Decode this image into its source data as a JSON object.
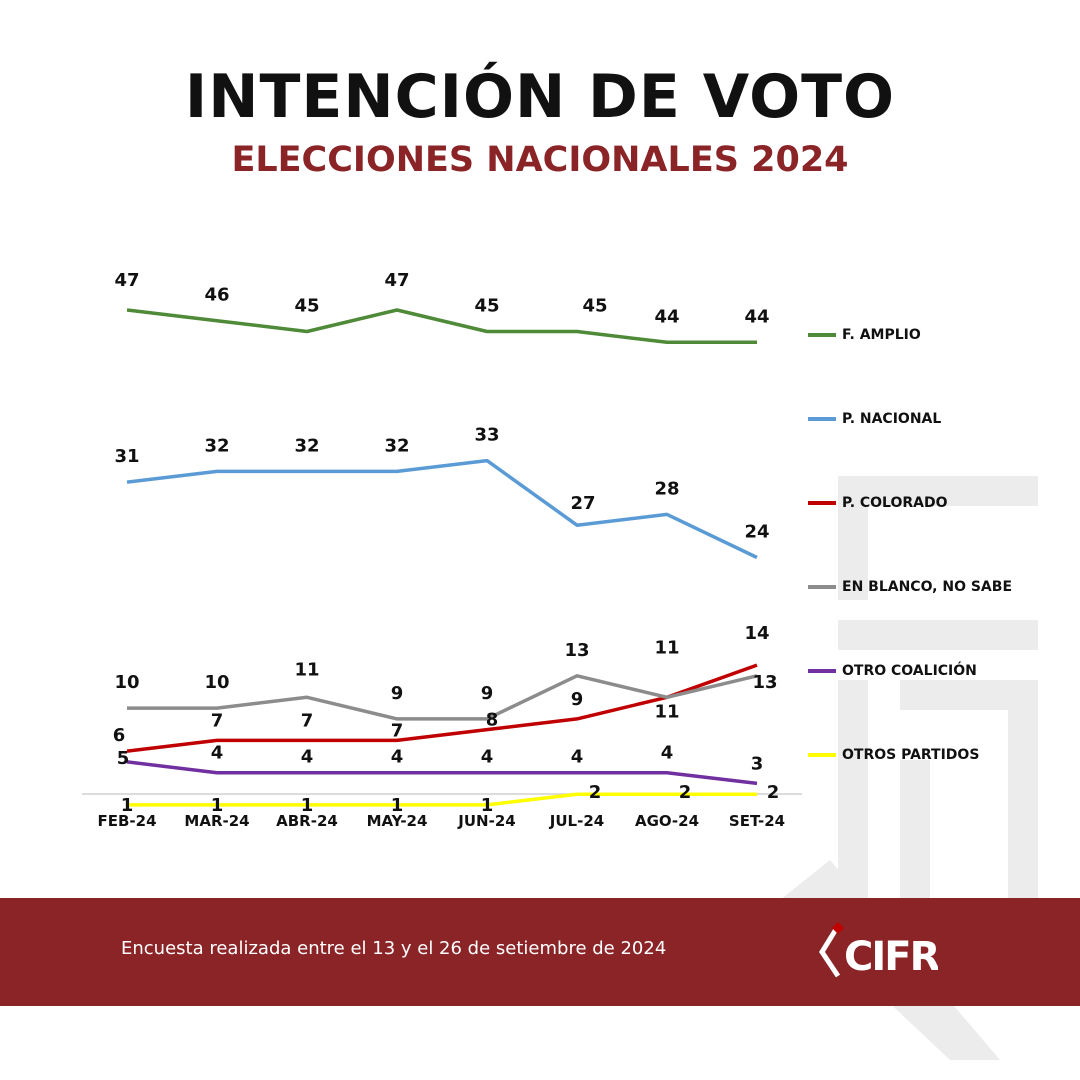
{
  "header": {
    "title": "INTENCIÓN DE VOTO",
    "subtitle": "ELECCIONES NACIONALES 2024"
  },
  "footer": {
    "note": "Encuesta realizada entre el 13 y el 26 de setiembre de 2024",
    "logo_text": "CIFRA"
  },
  "colors": {
    "brand": "#8a2427",
    "watermark": "#ececec"
  },
  "chart_data": {
    "type": "line",
    "categories": [
      "FEB-24",
      "MAR-24",
      "ABR-24",
      "MAY-24",
      "JUN-24",
      "JUL-24",
      "AGO-24",
      "SET-24"
    ],
    "ylim": [
      0,
      50
    ],
    "grid": false,
    "legend_position": "right",
    "series": [
      {
        "name": "F. AMPLIO",
        "color": "#4f8a38",
        "values": [
          47,
          46,
          45,
          47,
          45,
          45,
          44,
          44
        ]
      },
      {
        "name": "P. NACIONAL",
        "color": "#5b9bd5",
        "values": [
          31,
          32,
          32,
          32,
          33,
          27,
          28,
          24
        ]
      },
      {
        "name": "P. COLORADO",
        "color": "#c00000",
        "values": [
          6,
          7,
          7,
          7,
          8,
          9,
          11,
          14
        ]
      },
      {
        "name": "EN BLANCO, NO SABE",
        "color": "#8c8c8c",
        "values": [
          10,
          10,
          11,
          9,
          9,
          13,
          11,
          13
        ]
      },
      {
        "name": "OTRO COALICIÓN",
        "color": "#7030a0",
        "values": [
          5,
          4,
          4,
          4,
          4,
          4,
          4,
          3
        ]
      },
      {
        "name": "OTROS PARTIDOS",
        "color": "#ffff00",
        "values": [
          1,
          1,
          1,
          1,
          1,
          2,
          2,
          2
        ]
      }
    ]
  }
}
